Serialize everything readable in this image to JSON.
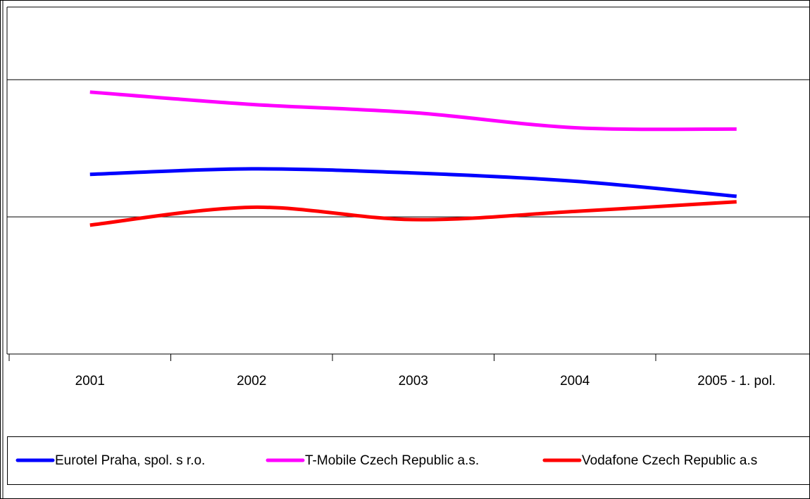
{
  "chart_data": {
    "type": "line",
    "categories": [
      "2001",
      "2002",
      "2003",
      "2004",
      "2005 - 1. pol."
    ],
    "series": [
      {
        "name": "Eurotel Praha, spol. s r.o.",
        "color": "#0000ff",
        "values": [
          1.31,
          1.35,
          1.32,
          1.26,
          1.15
        ]
      },
      {
        "name": "T-Mobile Czech Republic a.s.",
        "color": "#ff00ff",
        "values": [
          1.91,
          1.82,
          1.76,
          1.65,
          1.64
        ]
      },
      {
        "name": "Vodafone Czech Republic a.s",
        "color": "#ff0000",
        "values": [
          0.94,
          1.07,
          0.98,
          1.04,
          1.11
        ]
      }
    ],
    "ylim": [
      0,
      2.53
    ],
    "yticks": [
      0,
      1,
      2
    ],
    "grid": true,
    "smooth": true
  }
}
